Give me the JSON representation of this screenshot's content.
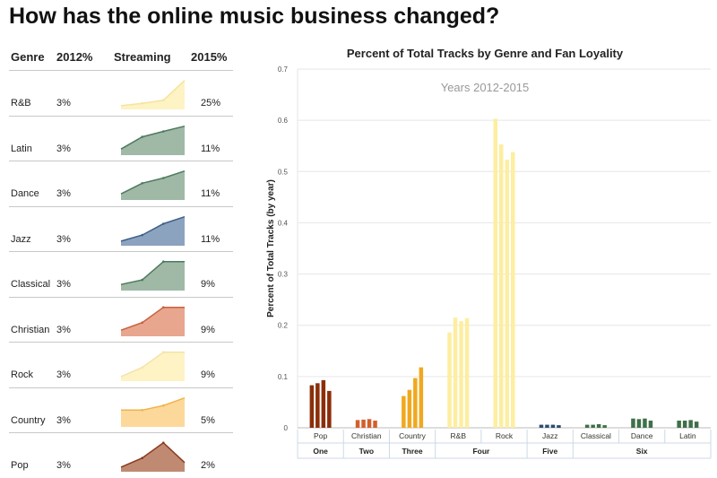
{
  "page_title": "How has the online music business changed?",
  "table": {
    "headers": {
      "genre": "Genre",
      "y2012": "2012%",
      "streaming": "Streaming",
      "y2015": "2015%"
    },
    "rows": [
      {
        "genre": "R&B",
        "y2012": "3%",
        "y2015": "25%",
        "color": "#f7e39a",
        "fill": "#fdf3c4",
        "trend": [
          0.12,
          0.2,
          0.3,
          0.95
        ]
      },
      {
        "genre": "Latin",
        "y2012": "3%",
        "y2015": "11%",
        "color": "#4d7a5e",
        "fill": "#9fb9a6",
        "trend": [
          0.2,
          0.6,
          0.78,
          0.95
        ]
      },
      {
        "genre": "Dance",
        "y2012": "3%",
        "y2015": "11%",
        "color": "#4d7a5e",
        "fill": "#9fb9a6",
        "trend": [
          0.2,
          0.55,
          0.72,
          0.95
        ]
      },
      {
        "genre": "Jazz",
        "y2012": "3%",
        "y2015": "11%",
        "color": "#3d5f8a",
        "fill": "#8ca3bf",
        "trend": [
          0.15,
          0.35,
          0.72,
          0.95
        ]
      },
      {
        "genre": "Classical",
        "y2012": "3%",
        "y2015": "9%",
        "color": "#4d7a5e",
        "fill": "#9fb9a6",
        "trend": [
          0.2,
          0.35,
          0.95,
          0.95
        ]
      },
      {
        "genre": "Christian",
        "y2012": "3%",
        "y2015": "9%",
        "color": "#c8603e",
        "fill": "#e8a68e",
        "trend": [
          0.2,
          0.45,
          0.95,
          0.95
        ]
      },
      {
        "genre": "Rock",
        "y2012": "3%",
        "y2015": "9%",
        "color": "#f5e3a8",
        "fill": "#fdf3c4",
        "trend": [
          0.15,
          0.45,
          0.95,
          0.95
        ]
      },
      {
        "genre": "Country",
        "y2012": "3%",
        "y2015": "5%",
        "color": "#f0b24a",
        "fill": "#fcd89a",
        "trend": [
          0.55,
          0.55,
          0.7,
          0.95
        ]
      },
      {
        "genre": "Pop",
        "y2012": "3%",
        "y2015": "2%",
        "color": "#8b3a1c",
        "fill": "#c08a72",
        "trend": [
          0.15,
          0.45,
          0.95,
          0.3
        ]
      }
    ]
  },
  "chart_data": {
    "type": "bar",
    "title": "Percent of Total Tracks by Genre and Fan Loyality",
    "subtitle": "Years 2012-2015",
    "ylabel": "Percent of Total Tracks (by year)",
    "ylim": [
      0,
      0.7
    ],
    "yticks": [
      "0",
      "0.1",
      "0.2",
      "0.3",
      "0.4",
      "0.5",
      "0.6",
      "0.7"
    ],
    "groups": [
      {
        "label": "One",
        "categories": [
          "Pop"
        ]
      },
      {
        "label": "Two",
        "categories": [
          "Christian"
        ]
      },
      {
        "label": "Three",
        "categories": [
          "Country"
        ]
      },
      {
        "label": "Four",
        "categories": [
          "R&B",
          "Rock"
        ]
      },
      {
        "label": "Five",
        "categories": [
          "Jazz"
        ]
      },
      {
        "label": "Six",
        "categories": [
          "Classical",
          "Dance",
          "Latin"
        ]
      }
    ],
    "categories": [
      "Pop",
      "Christian",
      "Country",
      "R&B",
      "Rock",
      "Jazz",
      "Classical",
      "Dance",
      "Latin"
    ],
    "colors": [
      "#8b2e0a",
      "#d35f2c",
      "#f0a81e",
      "#fdeea0",
      "#fdeea0",
      "#2c4c72",
      "#3f7049",
      "#3f7049",
      "#3f7049"
    ],
    "values": [
      [
        0.083,
        0.087,
        0.093,
        0.072
      ],
      [
        0.015,
        0.016,
        0.017,
        0.014
      ],
      [
        0.062,
        0.074,
        0.097,
        0.118
      ],
      [
        0.186,
        0.215,
        0.208,
        0.214
      ],
      [
        0.603,
        0.553,
        0.523,
        0.538
      ],
      [
        0.006,
        0.006,
        0.006,
        0.005
      ],
      [
        0.006,
        0.006,
        0.007,
        0.005
      ],
      [
        0.018,
        0.017,
        0.018,
        0.014
      ],
      [
        0.014,
        0.014,
        0.015,
        0.012
      ]
    ]
  }
}
